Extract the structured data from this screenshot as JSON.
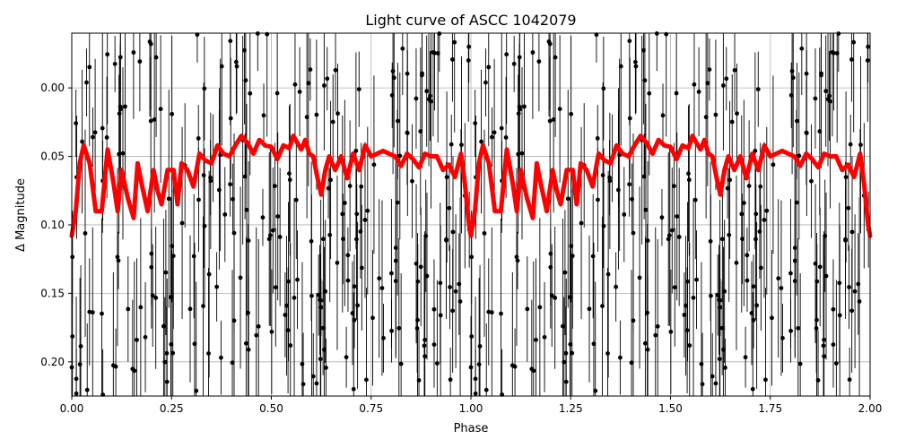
{
  "chart_data": {
    "type": "scatter",
    "title": "Light curve of ASCC 1042079",
    "xlabel": "Phase",
    "ylabel": "Δ Magnitude",
    "xlim": [
      0.0,
      2.0
    ],
    "ylim": [
      0.225,
      -0.04
    ],
    "y_inverted": true,
    "grid": true,
    "xticks": [
      0.0,
      0.25,
      0.5,
      0.75,
      1.0,
      1.25,
      1.5,
      1.75,
      2.0
    ],
    "xtick_labels": [
      "0.00",
      "0.25",
      "0.50",
      "0.75",
      "1.00",
      "1.25",
      "1.50",
      "1.75",
      "2.00"
    ],
    "yticks": [
      0.0,
      0.05,
      0.1,
      0.15,
      0.2
    ],
    "ytick_labels": [
      "0.00",
      "0.05",
      "0.10",
      "0.15",
      "0.20"
    ],
    "series": [
      {
        "kind": "observations",
        "color": "#000000",
        "marker": "circle-with-errorbars",
        "magnitude_scatter_range": [
          -0.04,
          0.225
        ],
        "points_per_cycle": 260,
        "repeated_in_second_cycle": true
      },
      {
        "kind": "model-fit",
        "color": "#ff0000",
        "line": "thick",
        "x": [
          0.0,
          0.01,
          0.02,
          0.03,
          0.045,
          0.06,
          0.075,
          0.09,
          0.105,
          0.115,
          0.125,
          0.14,
          0.155,
          0.165,
          0.175,
          0.19,
          0.205,
          0.215,
          0.225,
          0.24,
          0.255,
          0.265,
          0.275,
          0.29,
          0.305,
          0.32,
          0.335,
          0.35,
          0.365,
          0.38,
          0.395,
          0.41,
          0.425,
          0.44,
          0.455,
          0.47,
          0.485,
          0.5,
          0.515,
          0.53,
          0.545,
          0.555,
          0.565,
          0.575,
          0.585,
          0.595,
          0.605,
          0.615,
          0.625,
          0.635,
          0.645,
          0.66,
          0.675,
          0.69,
          0.705,
          0.72,
          0.735,
          0.75,
          0.765,
          0.78,
          0.795,
          0.81,
          0.825,
          0.84,
          0.855,
          0.87,
          0.885,
          0.9,
          0.915,
          0.93,
          0.945,
          0.96,
          0.975,
          0.985,
          0.995,
          1.0
        ],
        "y": [
          0.108,
          0.09,
          0.055,
          0.042,
          0.055,
          0.09,
          0.09,
          0.045,
          0.07,
          0.09,
          0.06,
          0.08,
          0.095,
          0.055,
          0.07,
          0.09,
          0.06,
          0.075,
          0.085,
          0.06,
          0.06,
          0.085,
          0.055,
          0.06,
          0.072,
          0.048,
          0.053,
          0.055,
          0.042,
          0.048,
          0.05,
          0.042,
          0.035,
          0.04,
          0.048,
          0.038,
          0.042,
          0.043,
          0.052,
          0.042,
          0.044,
          0.035,
          0.04,
          0.045,
          0.038,
          0.048,
          0.05,
          0.065,
          0.078,
          0.06,
          0.05,
          0.06,
          0.05,
          0.066,
          0.048,
          0.06,
          0.042,
          0.05,
          0.048,
          0.046,
          0.048,
          0.05,
          0.057,
          0.048,
          0.052,
          0.058,
          0.048,
          0.05,
          0.05,
          0.06,
          0.056,
          0.065,
          0.048,
          0.07,
          0.1,
          0.108
        ]
      }
    ]
  }
}
